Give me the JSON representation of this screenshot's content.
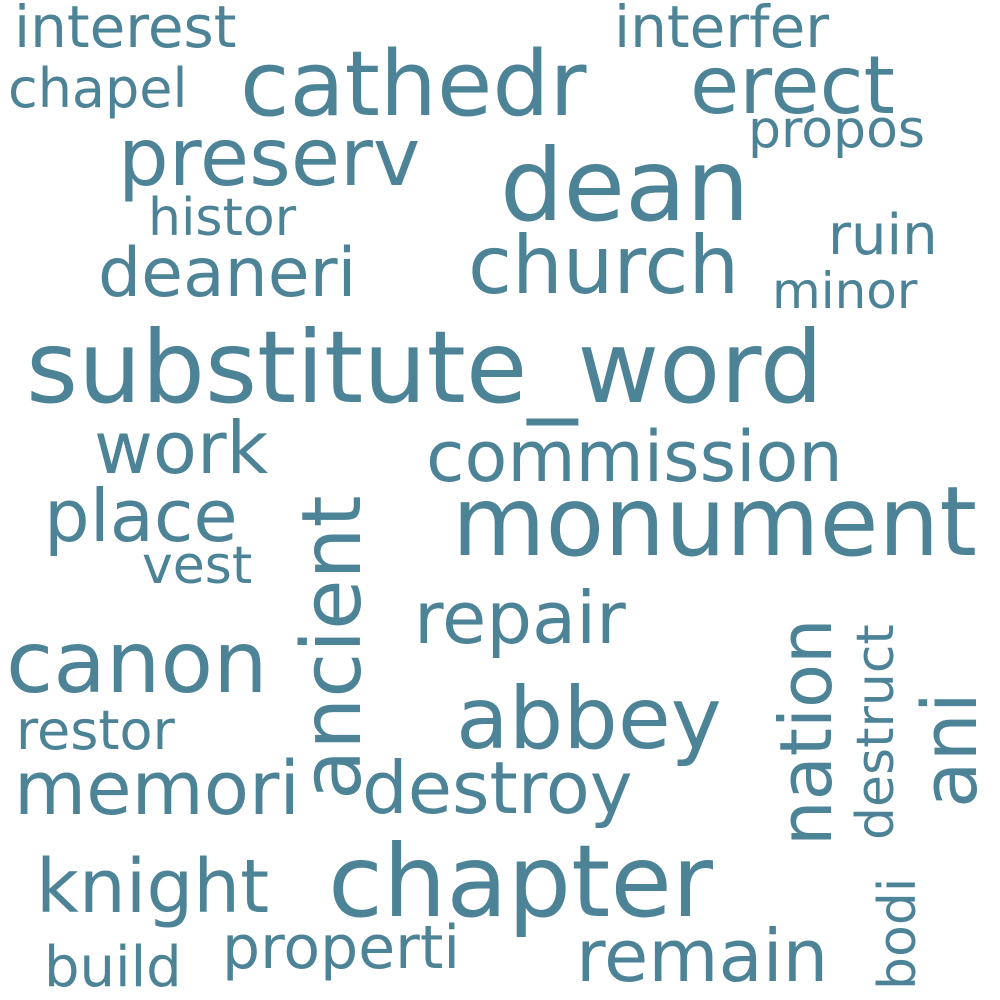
{
  "text_color": "#4d8396",
  "background_color": "#ffffff",
  "words": [
    "interest",
    "interfer",
    "chapel",
    "cathedr",
    "erect",
    "propos",
    "preserv",
    "dean",
    "histor",
    "ruin",
    "deaneri",
    "church",
    "minor",
    "substitute_word",
    "work",
    "commission",
    "place",
    "monument",
    "vest",
    "ancient",
    "repair",
    "nation",
    "destruct",
    "canon",
    "abbey",
    "ani",
    "restor",
    "memori",
    "destroy",
    "bodi",
    "knight",
    "chapter",
    "properti",
    "remain",
    "build"
  ]
}
